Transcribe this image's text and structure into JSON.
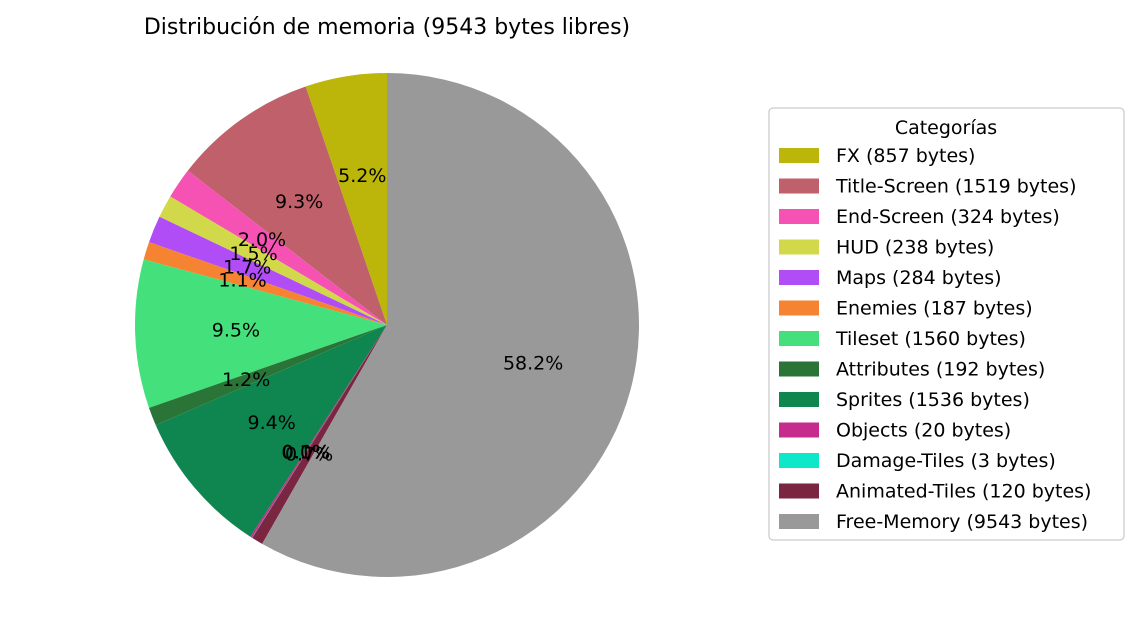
{
  "chart_data": {
    "type": "pie",
    "title": "Distribución de memoria (9543 bytes libres)",
    "legend_title": "Categorías",
    "legend_position": "right",
    "start_angle_deg": 90,
    "direction": "counterclockwise",
    "slices": [
      {
        "label": "FX (857 bytes)",
        "value": 857,
        "pct_label": "5.2%",
        "color": "#bcb60a"
      },
      {
        "label": "Title-Screen (1519 bytes)",
        "value": 1519,
        "pct_label": "9.3%",
        "color": "#c0606a"
      },
      {
        "label": "End-Screen (324 bytes)",
        "value": 324,
        "pct_label": "2.0%",
        "color": "#f552b4"
      },
      {
        "label": "HUD (238 bytes)",
        "value": 238,
        "pct_label": "1.5%",
        "color": "#d1d94a"
      },
      {
        "label": "Maps (284 bytes)",
        "value": 284,
        "pct_label": "1.7%",
        "color": "#b04df7"
      },
      {
        "label": "Enemies (187 bytes)",
        "value": 187,
        "pct_label": "1.1%",
        "color": "#f58331"
      },
      {
        "label": "Tileset (1560 bytes)",
        "value": 1560,
        "pct_label": "9.5%",
        "color": "#44e07c"
      },
      {
        "label": "Attributes (192 bytes)",
        "value": 192,
        "pct_label": "1.2%",
        "color": "#2b7437"
      },
      {
        "label": "Sprites (1536 bytes)",
        "value": 1536,
        "pct_label": "9.4%",
        "color": "#0f8550"
      },
      {
        "label": "Objects (20 bytes)",
        "value": 20,
        "pct_label": "0.1%",
        "color": "#c52c8c"
      },
      {
        "label": "Damage-Tiles (3 bytes)",
        "value": 3,
        "pct_label": "0.0%",
        "color": "#0ce8c8"
      },
      {
        "label": "Animated-Tiles (120 bytes)",
        "value": 120,
        "pct_label": "0.7%",
        "color": "#7b2640"
      },
      {
        "label": "Free-Memory (9543 bytes)",
        "value": 9543,
        "pct_label": "58.2%",
        "color": "#999999"
      }
    ]
  }
}
